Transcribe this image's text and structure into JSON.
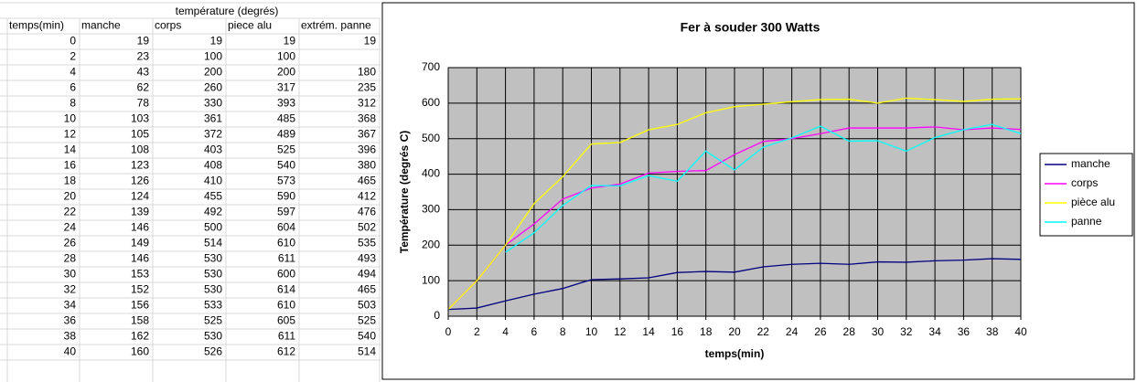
{
  "table": {
    "group_header": "température (degrés)",
    "columns": [
      "temps(min)",
      "manche",
      "corps",
      "piece alu",
      "extrém. panne"
    ],
    "rows": [
      [
        0,
        19,
        19,
        19,
        19
      ],
      [
        2,
        23,
        100,
        100,
        null
      ],
      [
        4,
        43,
        200,
        200,
        180
      ],
      [
        6,
        62,
        260,
        317,
        235
      ],
      [
        8,
        78,
        330,
        393,
        312
      ],
      [
        10,
        103,
        361,
        485,
        368
      ],
      [
        12,
        105,
        372,
        489,
        367
      ],
      [
        14,
        108,
        403,
        525,
        396
      ],
      [
        16,
        123,
        408,
        540,
        380
      ],
      [
        18,
        126,
        410,
        573,
        465
      ],
      [
        20,
        124,
        455,
        590,
        412
      ],
      [
        22,
        139,
        492,
        597,
        476
      ],
      [
        24,
        146,
        500,
        604,
        502
      ],
      [
        26,
        149,
        514,
        610,
        535
      ],
      [
        28,
        146,
        530,
        611,
        493
      ],
      [
        30,
        153,
        530,
        600,
        494
      ],
      [
        32,
        152,
        530,
        614,
        465
      ],
      [
        34,
        156,
        533,
        610,
        503
      ],
      [
        36,
        158,
        525,
        605,
        525
      ],
      [
        38,
        162,
        530,
        611,
        540
      ],
      [
        40,
        160,
        526,
        612,
        514
      ]
    ]
  },
  "chart_data": {
    "type": "line",
    "title": "Fer à souder 300 Watts",
    "x_label": "temps(min)",
    "y_label": "Température (degrés C)",
    "x": [
      0,
      2,
      4,
      6,
      8,
      10,
      12,
      14,
      16,
      18,
      20,
      22,
      24,
      26,
      28,
      30,
      32,
      34,
      36,
      38,
      40
    ],
    "series": [
      {
        "name": "manche",
        "color": "#000080",
        "values": [
          19,
          23,
          43,
          62,
          78,
          103,
          105,
          108,
          123,
          126,
          124,
          139,
          146,
          149,
          146,
          153,
          152,
          156,
          158,
          162,
          160
        ]
      },
      {
        "name": "corps",
        "color": "#ff00ff",
        "values": [
          19,
          100,
          200,
          260,
          330,
          361,
          372,
          403,
          408,
          410,
          455,
          492,
          500,
          514,
          530,
          530,
          530,
          533,
          525,
          530,
          526
        ]
      },
      {
        "name": "pièce alu",
        "color": "#ffff00",
        "values": [
          19,
          100,
          200,
          317,
          393,
          485,
          489,
          525,
          540,
          573,
          590,
          597,
          604,
          610,
          611,
          600,
          614,
          610,
          605,
          611,
          612
        ]
      },
      {
        "name": "panne",
        "color": "#00ffff",
        "values": [
          19,
          null,
          180,
          235,
          312,
          368,
          367,
          396,
          380,
          465,
          412,
          476,
          502,
          535,
          493,
          494,
          465,
          503,
          525,
          540,
          514
        ]
      }
    ],
    "xlim": [
      0,
      40
    ],
    "xticks": [
      0,
      2,
      4,
      6,
      8,
      10,
      12,
      14,
      16,
      18,
      20,
      22,
      24,
      26,
      28,
      30,
      32,
      34,
      36,
      38,
      40
    ],
    "ylim": [
      0,
      700
    ],
    "yticks": [
      0,
      100,
      200,
      300,
      400,
      500,
      600,
      700
    ],
    "grid": true,
    "plot_background": "#c0c0c0",
    "legend": "right"
  }
}
